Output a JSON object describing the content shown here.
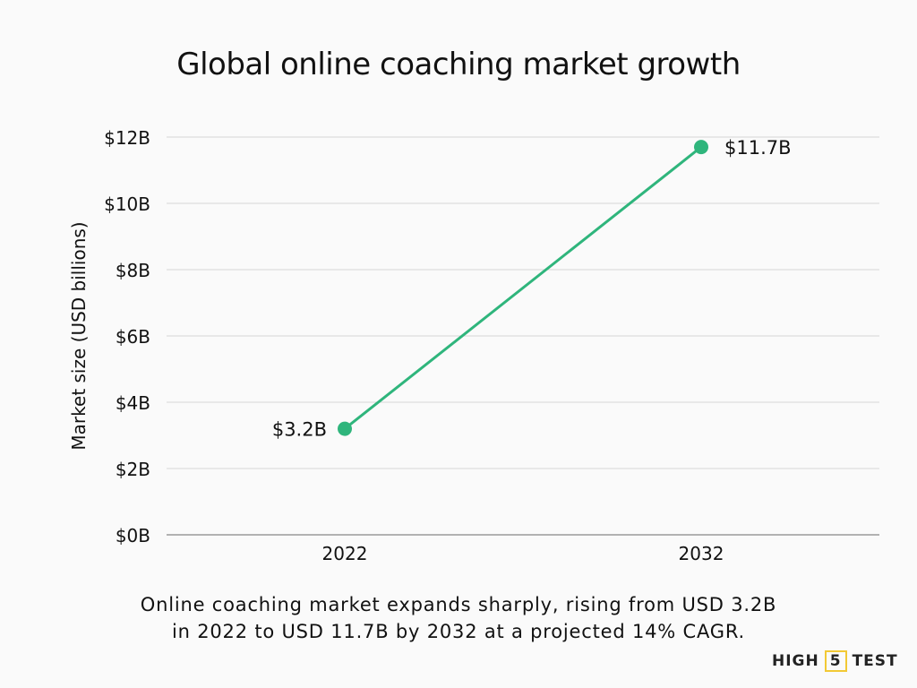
{
  "chart_data": {
    "type": "line",
    "title": "Global online coaching market growth",
    "xlabel": "",
    "ylabel": "Market size (USD billions)",
    "categories": [
      "2022",
      "2032"
    ],
    "series": [
      {
        "values": [
          3.2,
          11.7
        ],
        "data_labels": [
          "$3.2B",
          "$11.7B"
        ]
      }
    ],
    "ylim": [
      0,
      12
    ],
    "yticks": [
      0,
      2,
      4,
      6,
      8,
      10,
      12
    ],
    "ytick_labels": [
      "$0B",
      "$2B",
      "$4B",
      "$6B",
      "$8B",
      "$10B",
      "$12B"
    ],
    "grid": true,
    "line_color": "#2fb57c"
  },
  "caption": {
    "line1": "Online coaching market expands sharply, rising from USD 3.2B",
    "line2": "in 2022 to USD 11.7B by 2032 at a projected 14% CAGR."
  },
  "logo": {
    "part1": "HIGH",
    "part2": "5",
    "part3": "TEST",
    "accent": "#f2c935"
  }
}
